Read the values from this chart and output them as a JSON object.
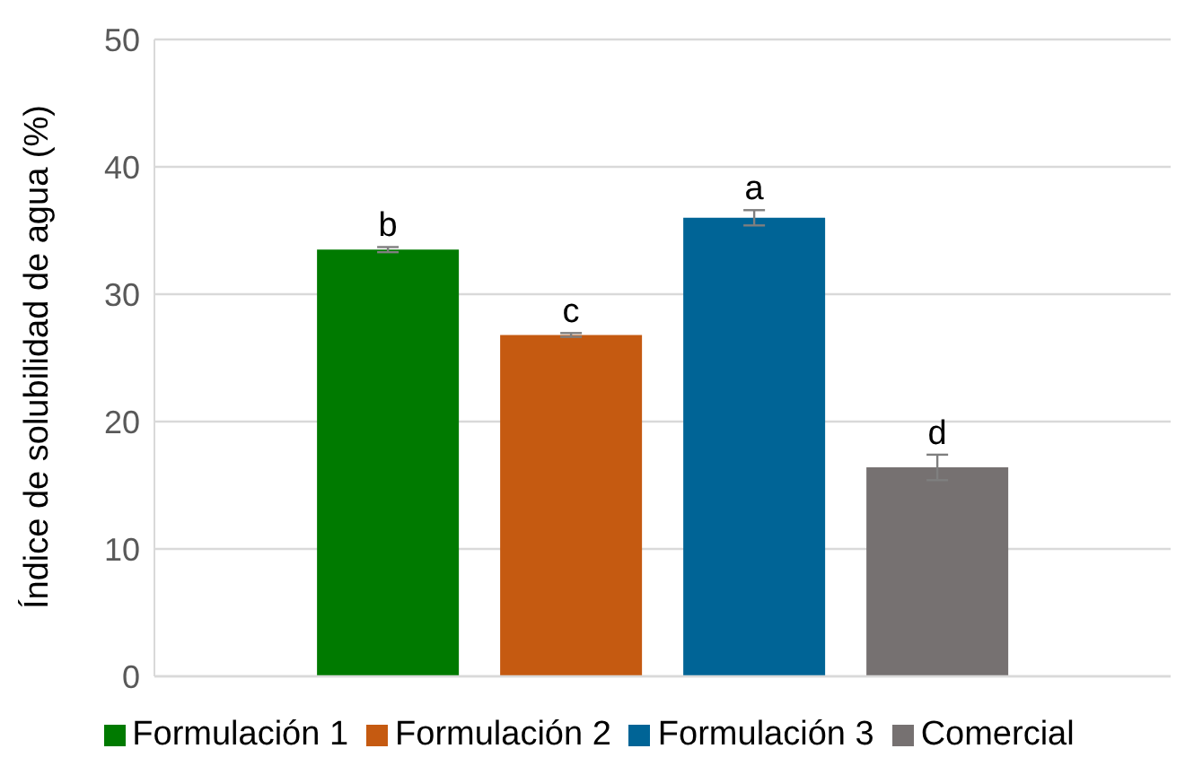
{
  "chart_data": {
    "type": "bar",
    "ylabel": "Índice de solubilidad de agua (%)",
    "categories": [
      null
    ],
    "series": [
      {
        "name": "Formulación 1",
        "color": "#007a00",
        "values": [
          33.5
        ],
        "errors": [
          0.2
        ]
      },
      {
        "name": "Formulación 2",
        "color": "#c55a11",
        "values": [
          26.8
        ],
        "errors": [
          0.15
        ]
      },
      {
        "name": "Formulación 3",
        "color": "#006496",
        "values": [
          36.0
        ],
        "errors": [
          0.6
        ]
      },
      {
        "name": "Comercial",
        "color": "#767171",
        "values": [
          16.4
        ],
        "errors": [
          1.0
        ]
      }
    ],
    "annotations": [
      "b",
      "c",
      "a",
      "d"
    ],
    "ylim": [
      0,
      50
    ],
    "yticks": [
      0,
      10,
      20,
      30,
      40,
      50
    ],
    "grid": "y",
    "legend": "bottom"
  }
}
